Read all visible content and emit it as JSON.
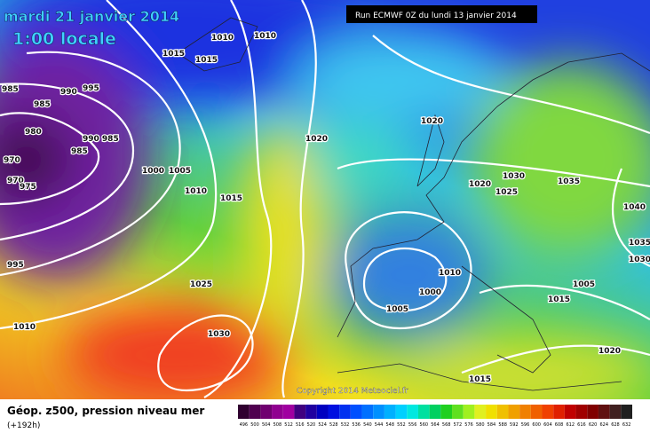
{
  "header": {
    "date": "mardi 21 janvier 2014",
    "time": "1:00 locale",
    "run": "Run ECMWF 0Z du lundi 13 janvier 2014",
    "copyright": "Copyright 2014 Meteociel.fr"
  },
  "isobar_labels": [
    "985",
    "990",
    "995",
    "985",
    "980",
    "990 985",
    "985",
    "970",
    "970",
    "975",
    "1000",
    "1005",
    "1010",
    "1015",
    "1010",
    "1010",
    "1015",
    "1015",
    "1020",
    "1020",
    "1020",
    "1030",
    "1025",
    "1035",
    "1040",
    "1035",
    "1030",
    "1010",
    "1000",
    "1005",
    "1005",
    "1015",
    "1025",
    "1030",
    "1020",
    "1015",
    "1010",
    "995"
  ],
  "footer": {
    "title": "Géop. z500, pression niveau mer",
    "lead": "(+192h)"
  },
  "legend": {
    "ticks": [
      496,
      500,
      504,
      508,
      512,
      516,
      520,
      524,
      528,
      532,
      536,
      540,
      544,
      548,
      552,
      556,
      560,
      564,
      568,
      572,
      576,
      580,
      584,
      588,
      592,
      596,
      600,
      604,
      608,
      612,
      616,
      620,
      624,
      628,
      632
    ]
  }
}
